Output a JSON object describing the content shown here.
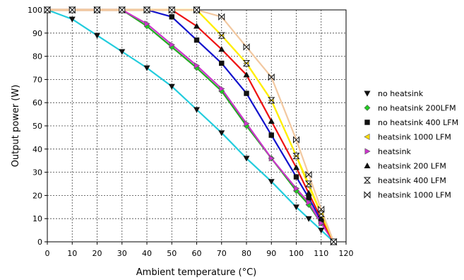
{
  "chart_data": {
    "type": "line",
    "title": "",
    "xlabel": "Ambient temperature (°C)",
    "ylabel": "Output power (W)",
    "xlim": [
      0,
      120
    ],
    "ylim": [
      0,
      100
    ],
    "xticks": [
      0,
      10,
      20,
      30,
      40,
      50,
      60,
      70,
      80,
      90,
      100,
      110,
      120
    ],
    "yticks": [
      0,
      10,
      20,
      30,
      40,
      50,
      60,
      70,
      80,
      90,
      100
    ],
    "grid": true,
    "legend_position": "right",
    "series": [
      {
        "name": "no heatsink",
        "line_color": "#22ccdd",
        "marker": "triangle-down",
        "marker_color": "#111111",
        "points": [
          [
            0,
            100
          ],
          [
            10,
            96
          ],
          [
            20,
            89
          ],
          [
            30,
            82
          ],
          [
            40,
            75
          ],
          [
            50,
            67
          ],
          [
            60,
            57
          ],
          [
            70,
            47
          ],
          [
            80,
            36
          ],
          [
            90,
            26
          ],
          [
            100,
            15
          ],
          [
            105,
            10
          ],
          [
            110,
            5
          ],
          [
            115,
            0
          ]
        ]
      },
      {
        "name": "no heatsink 200LFM",
        "line_color": "#22aa22",
        "marker": "diamond",
        "marker_color": "#22cc22",
        "points": [
          [
            0,
            100
          ],
          [
            10,
            100
          ],
          [
            20,
            100
          ],
          [
            30,
            100
          ],
          [
            40,
            93
          ],
          [
            50,
            84
          ],
          [
            60,
            75
          ],
          [
            70,
            65
          ],
          [
            80,
            50
          ],
          [
            90,
            36
          ],
          [
            100,
            22
          ],
          [
            105,
            16
          ],
          [
            110,
            8
          ],
          [
            115,
            0
          ]
        ]
      },
      {
        "name": "no heatsink 400 LFM",
        "line_color": "#1111cc",
        "marker": "square",
        "marker_color": "#111111",
        "points": [
          [
            0,
            100
          ],
          [
            10,
            100
          ],
          [
            20,
            100
          ],
          [
            30,
            100
          ],
          [
            40,
            100
          ],
          [
            50,
            97
          ],
          [
            60,
            87
          ],
          [
            70,
            77
          ],
          [
            80,
            64
          ],
          [
            90,
            46
          ],
          [
            100,
            28
          ],
          [
            105,
            19
          ],
          [
            110,
            9
          ],
          [
            115,
            0
          ]
        ]
      },
      {
        "name": "heatsink 1000 LFM",
        "line_color": "#ffee00",
        "marker": "triangle-left",
        "marker_color": "#ffdd00",
        "points": [
          [
            0,
            100
          ],
          [
            10,
            100
          ],
          [
            20,
            100
          ],
          [
            30,
            100
          ],
          [
            40,
            100
          ],
          [
            50,
            100
          ],
          [
            60,
            100
          ],
          [
            70,
            89
          ],
          [
            80,
            77
          ],
          [
            90,
            61
          ],
          [
            100,
            37
          ],
          [
            105,
            24
          ],
          [
            110,
            12
          ],
          [
            115,
            0
          ]
        ]
      },
      {
        "name": "heatsink",
        "line_color": "#cc33cc",
        "marker": "triangle-right",
        "marker_color": "#cc33cc",
        "points": [
          [
            0,
            100
          ],
          [
            10,
            100
          ],
          [
            20,
            100
          ],
          [
            30,
            100
          ],
          [
            40,
            94
          ],
          [
            50,
            85
          ],
          [
            60,
            76
          ],
          [
            70,
            66
          ],
          [
            80,
            51
          ],
          [
            90,
            36
          ],
          [
            100,
            23
          ],
          [
            105,
            17
          ],
          [
            110,
            8
          ],
          [
            115,
            0
          ]
        ]
      },
      {
        "name": "heatsink 200 LFM",
        "line_color": "#ee1111",
        "marker": "triangle-up",
        "marker_color": "#111111",
        "points": [
          [
            0,
            100
          ],
          [
            10,
            100
          ],
          [
            20,
            100
          ],
          [
            30,
            100
          ],
          [
            40,
            100
          ],
          [
            50,
            100
          ],
          [
            60,
            93
          ],
          [
            70,
            83
          ],
          [
            80,
            72
          ],
          [
            90,
            52
          ],
          [
            100,
            32
          ],
          [
            105,
            21
          ],
          [
            110,
            10
          ],
          [
            115,
            0
          ]
        ]
      },
      {
        "name": "heatsink 400 LFM",
        "line_color": "#ffee00",
        "marker": "hourglass",
        "marker_color": "#111111",
        "points": [
          [
            0,
            100
          ],
          [
            10,
            100
          ],
          [
            20,
            100
          ],
          [
            30,
            100
          ],
          [
            40,
            100
          ],
          [
            50,
            100
          ],
          [
            60,
            100
          ],
          [
            70,
            89
          ],
          [
            80,
            77
          ],
          [
            90,
            61
          ],
          [
            100,
            37
          ],
          [
            105,
            25
          ],
          [
            110,
            12
          ],
          [
            115,
            0
          ]
        ]
      },
      {
        "name": "heatsink 1000 LFM",
        "line_color": "#f2c8a0",
        "marker": "bowtie",
        "marker_color": "#111111",
        "points": [
          [
            0,
            100
          ],
          [
            10,
            100
          ],
          [
            20,
            100
          ],
          [
            30,
            100
          ],
          [
            40,
            100
          ],
          [
            50,
            100
          ],
          [
            60,
            100
          ],
          [
            70,
            97
          ],
          [
            80,
            84
          ],
          [
            90,
            71
          ],
          [
            100,
            44
          ],
          [
            105,
            29
          ],
          [
            110,
            14
          ],
          [
            115,
            0
          ]
        ]
      }
    ]
  }
}
